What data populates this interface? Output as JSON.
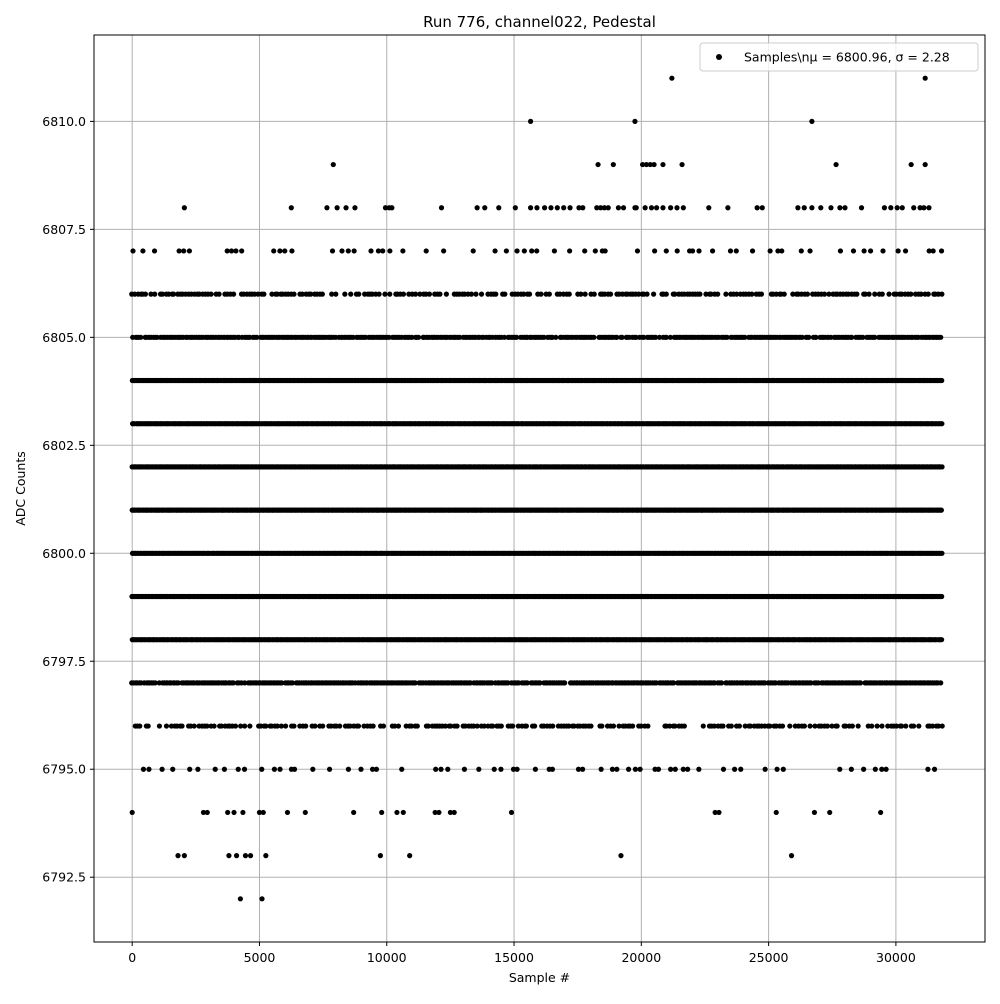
{
  "chart_data": {
    "type": "scatter",
    "title": "Run 776, channel022, Pedestal",
    "xlabel": "Sample #",
    "ylabel": "ADC Counts",
    "xlim": [
      -1500,
      33500
    ],
    "ylim": [
      6791.0,
      6812.0
    ],
    "xticks": [
      0,
      5000,
      10000,
      15000,
      20000,
      25000,
      30000
    ],
    "xtick_labels": [
      "0",
      "5000",
      "10000",
      "15000",
      "20000",
      "25000",
      "30000"
    ],
    "yticks": [
      6792.5,
      6795.0,
      6797.5,
      6800.0,
      6802.5,
      6805.0,
      6807.5,
      6810.0
    ],
    "ytick_labels": [
      "6792.5",
      "6795.0",
      "6797.5",
      "6800.0",
      "6802.5",
      "6805.0",
      "6807.5",
      "6810.0"
    ],
    "grid": true,
    "legend_position": "top-right",
    "marker_color": "#000000",
    "grid_color": "#b0b0b0",
    "series": [
      {
        "name": "Samples\\n$\\mu$ = 6800.96, $\\sigma$ = 2.28",
        "legend_label": "Samples\\nμ = 6800.96, σ = 2.28",
        "x_range": [
          0,
          31800
        ],
        "levels": [
          {
            "y": 6798,
            "coverage": "dense"
          },
          {
            "y": 6799,
            "coverage": "dense"
          },
          {
            "y": 6800,
            "coverage": "dense"
          },
          {
            "y": 6801,
            "coverage": "dense"
          },
          {
            "y": 6802,
            "coverage": "dense"
          },
          {
            "y": 6803,
            "coverage": "dense"
          },
          {
            "y": 6804,
            "coverage": "dense"
          },
          {
            "y": 6797,
            "coverage": "medium"
          },
          {
            "y": 6805,
            "coverage": "medium"
          },
          {
            "y": 6796,
            "coverage": "moderate"
          },
          {
            "y": 6806,
            "coverage": "moderate"
          },
          {
            "y": 6795,
            "coverage": "sparse"
          },
          {
            "y": 6807,
            "coverage": "sparse"
          }
        ],
        "outliers": [
          {
            "x": 0,
            "y": 6794
          },
          {
            "x": 2800,
            "y": 6794
          },
          {
            "x": 2950,
            "y": 6794
          },
          {
            "x": 3750,
            "y": 6794
          },
          {
            "x": 4000,
            "y": 6794
          },
          {
            "x": 4350,
            "y": 6794
          },
          {
            "x": 5000,
            "y": 6794
          },
          {
            "x": 5150,
            "y": 6794
          },
          {
            "x": 6100,
            "y": 6794
          },
          {
            "x": 6800,
            "y": 6794
          },
          {
            "x": 8700,
            "y": 6794
          },
          {
            "x": 9800,
            "y": 6794
          },
          {
            "x": 10400,
            "y": 6794
          },
          {
            "x": 10650,
            "y": 6794
          },
          {
            "x": 11900,
            "y": 6794
          },
          {
            "x": 12050,
            "y": 6794
          },
          {
            "x": 12500,
            "y": 6794
          },
          {
            "x": 12650,
            "y": 6794
          },
          {
            "x": 14900,
            "y": 6794
          },
          {
            "x": 22900,
            "y": 6794
          },
          {
            "x": 23050,
            "y": 6794
          },
          {
            "x": 25300,
            "y": 6794
          },
          {
            "x": 26800,
            "y": 6794
          },
          {
            "x": 27400,
            "y": 6794
          },
          {
            "x": 29400,
            "y": 6794
          },
          {
            "x": 1800,
            "y": 6793
          },
          {
            "x": 2050,
            "y": 6793
          },
          {
            "x": 3800,
            "y": 6793
          },
          {
            "x": 4100,
            "y": 6793
          },
          {
            "x": 4450,
            "y": 6793
          },
          {
            "x": 4650,
            "y": 6793
          },
          {
            "x": 5250,
            "y": 6793
          },
          {
            "x": 9750,
            "y": 6793
          },
          {
            "x": 10900,
            "y": 6793
          },
          {
            "x": 19200,
            "y": 6793
          },
          {
            "x": 25900,
            "y": 6793
          },
          {
            "x": 4250,
            "y": 6792
          },
          {
            "x": 5100,
            "y": 6792
          },
          {
            "x": 2050,
            "y": 6808
          },
          {
            "x": 6250,
            "y": 6808
          },
          {
            "x": 7650,
            "y": 6808
          },
          {
            "x": 8050,
            "y": 6808
          },
          {
            "x": 8400,
            "y": 6808
          },
          {
            "x": 8750,
            "y": 6808
          },
          {
            "x": 9950,
            "y": 6808
          },
          {
            "x": 10100,
            "y": 6808
          },
          {
            "x": 10200,
            "y": 6808
          },
          {
            "x": 12150,
            "y": 6808
          },
          {
            "x": 13550,
            "y": 6808
          },
          {
            "x": 13850,
            "y": 6808
          },
          {
            "x": 14400,
            "y": 6808
          },
          {
            "x": 15050,
            "y": 6808
          },
          {
            "x": 15650,
            "y": 6808
          },
          {
            "x": 15900,
            "y": 6808
          },
          {
            "x": 16200,
            "y": 6808
          },
          {
            "x": 16450,
            "y": 6808
          },
          {
            "x": 16700,
            "y": 6808
          },
          {
            "x": 16950,
            "y": 6808
          },
          {
            "x": 17200,
            "y": 6808
          },
          {
            "x": 17550,
            "y": 6808
          },
          {
            "x": 17700,
            "y": 6808
          },
          {
            "x": 18250,
            "y": 6808
          },
          {
            "x": 18400,
            "y": 6808
          },
          {
            "x": 18550,
            "y": 6808
          },
          {
            "x": 18700,
            "y": 6808
          },
          {
            "x": 19100,
            "y": 6808
          },
          {
            "x": 19300,
            "y": 6808
          },
          {
            "x": 19750,
            "y": 6808
          },
          {
            "x": 19800,
            "y": 6808
          },
          {
            "x": 20150,
            "y": 6808
          },
          {
            "x": 20400,
            "y": 6808
          },
          {
            "x": 20600,
            "y": 6808
          },
          {
            "x": 20850,
            "y": 6808
          },
          {
            "x": 21150,
            "y": 6808
          },
          {
            "x": 21400,
            "y": 6808
          },
          {
            "x": 21650,
            "y": 6808
          },
          {
            "x": 22650,
            "y": 6808
          },
          {
            "x": 23400,
            "y": 6808
          },
          {
            "x": 24550,
            "y": 6808
          },
          {
            "x": 24750,
            "y": 6808
          },
          {
            "x": 26150,
            "y": 6808
          },
          {
            "x": 26400,
            "y": 6808
          },
          {
            "x": 26700,
            "y": 6808
          },
          {
            "x": 27050,
            "y": 6808
          },
          {
            "x": 27450,
            "y": 6808
          },
          {
            "x": 27800,
            "y": 6808
          },
          {
            "x": 28000,
            "y": 6808
          },
          {
            "x": 28650,
            "y": 6808
          },
          {
            "x": 29550,
            "y": 6808
          },
          {
            "x": 29800,
            "y": 6808
          },
          {
            "x": 30050,
            "y": 6808
          },
          {
            "x": 30250,
            "y": 6808
          },
          {
            "x": 30700,
            "y": 6808
          },
          {
            "x": 30950,
            "y": 6808
          },
          {
            "x": 31100,
            "y": 6808
          },
          {
            "x": 31300,
            "y": 6808
          },
          {
            "x": 7900,
            "y": 6809
          },
          {
            "x": 18300,
            "y": 6809
          },
          {
            "x": 18900,
            "y": 6809
          },
          {
            "x": 20050,
            "y": 6809
          },
          {
            "x": 20200,
            "y": 6809
          },
          {
            "x": 20350,
            "y": 6809
          },
          {
            "x": 20500,
            "y": 6809
          },
          {
            "x": 20850,
            "y": 6809
          },
          {
            "x": 21600,
            "y": 6809
          },
          {
            "x": 27650,
            "y": 6809
          },
          {
            "x": 30600,
            "y": 6809
          },
          {
            "x": 31150,
            "y": 6809
          },
          {
            "x": 15650,
            "y": 6810
          },
          {
            "x": 19750,
            "y": 6810
          },
          {
            "x": 26700,
            "y": 6810
          },
          {
            "x": 21200,
            "y": 6811
          },
          {
            "x": 31150,
            "y": 6811
          }
        ]
      }
    ]
  }
}
